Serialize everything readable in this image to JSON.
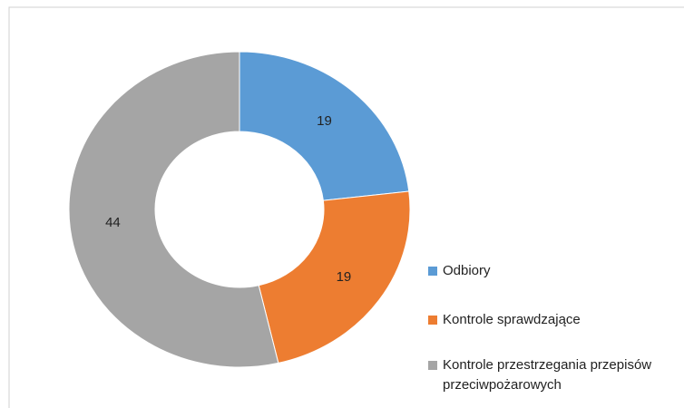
{
  "chart_data": {
    "type": "donut",
    "categories": [
      "Odbiory",
      "Kontrole sprawdzające",
      "Kontrole przestrzegania przepisów przeciwpożarowych"
    ],
    "values": [
      19,
      19,
      44
    ],
    "colors": [
      "#5b9bd5",
      "#ed7d31",
      "#a5a5a5"
    ],
    "legend": "right"
  }
}
